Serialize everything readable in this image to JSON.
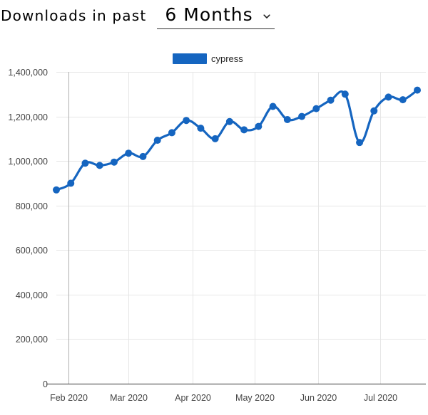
{
  "header": {
    "label": "Downloads in past",
    "period_selected": "6 Months",
    "chevron_icon": "chevron-down-icon"
  },
  "chart_data": {
    "type": "line",
    "series": [
      {
        "name": "cypress",
        "color": "#1565c0",
        "points": [
          [
            "2020-01-26",
            870000
          ],
          [
            "2020-02-02",
            900000
          ],
          [
            "2020-02-09",
            990000
          ],
          [
            "2020-02-16",
            980000
          ],
          [
            "2020-02-23",
            995000
          ],
          [
            "2020-03-01",
            1035000
          ],
          [
            "2020-03-08",
            1020000
          ],
          [
            "2020-03-15",
            1093000
          ],
          [
            "2020-03-22",
            1127000
          ],
          [
            "2020-03-29",
            1182000
          ],
          [
            "2020-04-05",
            1147000
          ],
          [
            "2020-04-12",
            1100000
          ],
          [
            "2020-04-19",
            1177000
          ],
          [
            "2020-04-26",
            1140000
          ],
          [
            "2020-05-03",
            1155000
          ],
          [
            "2020-05-10",
            1245000
          ],
          [
            "2020-05-17",
            1186000
          ],
          [
            "2020-05-24",
            1200000
          ],
          [
            "2020-05-31",
            1235000
          ],
          [
            "2020-06-07",
            1273000
          ],
          [
            "2020-06-14",
            1300000
          ],
          [
            "2020-06-21",
            1083000
          ],
          [
            "2020-06-28",
            1225000
          ],
          [
            "2020-07-05",
            1287000
          ],
          [
            "2020-07-12",
            1275000
          ],
          [
            "2020-07-19",
            1318000
          ]
        ]
      }
    ],
    "x_ticks": [
      {
        "date": "2020-02-01",
        "label": "Feb 2020"
      },
      {
        "date": "2020-03-01",
        "label": "Mar 2020"
      },
      {
        "date": "2020-04-01",
        "label": "Apr 2020"
      },
      {
        "date": "2020-05-01",
        "label": "May 2020"
      },
      {
        "date": "2020-06-01",
        "label": "Jun 2020"
      },
      {
        "date": "2020-07-01",
        "label": "Jul 2020"
      }
    ],
    "xlim": [
      "2020-01-26",
      "2020-07-19"
    ],
    "y_ticks": [
      {
        "value": 0,
        "label": "0"
      },
      {
        "value": 200000,
        "label": "200,000"
      },
      {
        "value": 400000,
        "label": "400,000"
      },
      {
        "value": 600000,
        "label": "600,000"
      },
      {
        "value": 800000,
        "label": "800,000"
      },
      {
        "value": 1000000,
        "label": "1,000,000"
      },
      {
        "value": 1200000,
        "label": "1,200,000"
      },
      {
        "value": 1400000,
        "label": "1,400,000"
      }
    ],
    "ylim": [
      0,
      1400000
    ],
    "grid": true,
    "legend_position": "top-center"
  }
}
